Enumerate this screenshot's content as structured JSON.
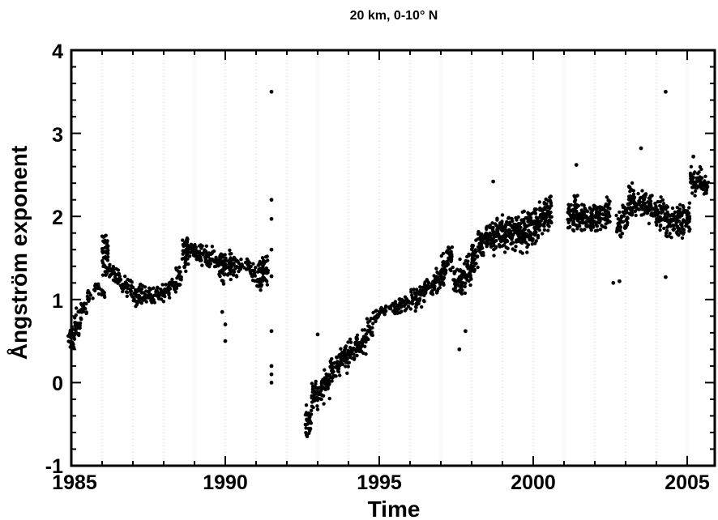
{
  "chart_data": {
    "type": "scatter",
    "title": "20 km, 0-10° N",
    "xlabel": "Time",
    "ylabel": "Ångström exponent",
    "xlim": [
      1985,
      2005.9
    ],
    "ylim": [
      -1,
      4
    ],
    "xticks": [
      "1985",
      "1990",
      "1995",
      "2000",
      "2005"
    ],
    "yticks": [
      "-1",
      "0",
      "1",
      "2",
      "3",
      "4"
    ],
    "grid": "vertical dotted lines at each year",
    "marker_color": "#000000",
    "grid_color": "#c8c8c8",
    "clusters_x_lo_hi": [
      [
        1985.0,
        0.35,
        0.7
      ],
      [
        1985.2,
        0.45,
        0.9
      ],
      [
        1985.4,
        0.75,
        1.0
      ],
      [
        1985.6,
        0.98,
        1.12
      ],
      [
        1985.8,
        1.03,
        1.2
      ],
      [
        1986.0,
        1.02,
        1.15
      ],
      [
        1986.1,
        1.25,
        1.85
      ],
      [
        1986.3,
        1.2,
        1.45
      ],
      [
        1986.5,
        1.15,
        1.4
      ],
      [
        1986.7,
        1.05,
        1.3
      ],
      [
        1986.9,
        1.0,
        1.25
      ],
      [
        1987.1,
        0.9,
        1.2
      ],
      [
        1987.3,
        0.9,
        1.2
      ],
      [
        1987.5,
        0.95,
        1.2
      ],
      [
        1987.7,
        0.95,
        1.18
      ],
      [
        1987.9,
        0.95,
        1.2
      ],
      [
        1988.1,
        1.0,
        1.25
      ],
      [
        1988.3,
        1.05,
        1.3
      ],
      [
        1988.5,
        1.1,
        1.4
      ],
      [
        1988.7,
        1.3,
        1.85
      ],
      [
        1988.9,
        1.45,
        1.75
      ],
      [
        1989.1,
        1.4,
        1.7
      ],
      [
        1989.3,
        1.4,
        1.68
      ],
      [
        1989.5,
        1.35,
        1.65
      ],
      [
        1989.7,
        1.35,
        1.6
      ],
      [
        1989.9,
        1.1,
        1.65
      ],
      [
        1990.1,
        1.2,
        1.6
      ],
      [
        1990.3,
        1.25,
        1.55
      ],
      [
        1990.5,
        1.3,
        1.5
      ],
      [
        1990.7,
        1.3,
        1.5
      ],
      [
        1990.9,
        1.2,
        1.45
      ],
      [
        1991.1,
        1.1,
        1.5
      ],
      [
        1991.3,
        1.15,
        1.55
      ],
      [
        1992.7,
        -0.7,
        -0.2
      ],
      [
        1992.9,
        -0.4,
        0.1
      ],
      [
        1993.1,
        -0.3,
        0.05
      ],
      [
        1993.3,
        -0.2,
        0.2
      ],
      [
        1993.5,
        0.0,
        0.35
      ],
      [
        1993.7,
        0.05,
        0.45
      ],
      [
        1993.9,
        0.1,
        0.5
      ],
      [
        1994.1,
        0.2,
        0.55
      ],
      [
        1994.3,
        0.3,
        0.62
      ],
      [
        1994.5,
        0.3,
        0.65
      ],
      [
        1994.7,
        0.5,
        0.8
      ],
      [
        1994.9,
        0.7,
        0.9
      ],
      [
        1995.1,
        0.8,
        0.95
      ],
      [
        1995.3,
        0.82,
        1.0
      ],
      [
        1995.5,
        0.8,
        1.0
      ],
      [
        1995.7,
        0.82,
        1.05
      ],
      [
        1995.9,
        0.85,
        1.1
      ],
      [
        1996.1,
        0.85,
        1.15
      ],
      [
        1996.3,
        0.9,
        1.2
      ],
      [
        1996.5,
        0.95,
        1.25
      ],
      [
        1996.7,
        1.0,
        1.3
      ],
      [
        1996.9,
        1.05,
        1.4
      ],
      [
        1997.1,
        1.1,
        1.6
      ],
      [
        1997.3,
        1.3,
        1.7
      ],
      [
        1997.5,
        1.0,
        1.4
      ],
      [
        1997.7,
        1.0,
        1.5
      ],
      [
        1997.9,
        1.1,
        1.6
      ],
      [
        1998.1,
        1.3,
        1.75
      ],
      [
        1998.3,
        1.4,
        1.85
      ],
      [
        1998.5,
        1.55,
        1.95
      ],
      [
        1998.7,
        1.5,
        2.0
      ],
      [
        1998.9,
        1.6,
        2.05
      ],
      [
        1999.1,
        1.55,
        2.0
      ],
      [
        1999.3,
        1.6,
        2.05
      ],
      [
        1999.5,
        1.55,
        2.05
      ],
      [
        1999.7,
        1.5,
        2.1
      ],
      [
        1999.9,
        1.6,
        2.1
      ],
      [
        2000.1,
        1.65,
        2.15
      ],
      [
        2000.3,
        1.7,
        2.2
      ],
      [
        2000.5,
        1.75,
        2.3
      ],
      [
        2001.2,
        1.8,
        2.2
      ],
      [
        2001.4,
        1.8,
        2.3
      ],
      [
        2001.6,
        1.8,
        2.2
      ],
      [
        2001.8,
        1.8,
        2.15
      ],
      [
        2002.0,
        1.75,
        2.2
      ],
      [
        2002.2,
        1.8,
        2.2
      ],
      [
        2002.4,
        1.8,
        2.25
      ],
      [
        2002.8,
        1.7,
        2.1
      ],
      [
        2003.0,
        1.8,
        2.2
      ],
      [
        2003.2,
        1.95,
        2.45
      ],
      [
        2003.4,
        2.0,
        2.3
      ],
      [
        2003.6,
        1.95,
        2.35
      ],
      [
        2003.8,
        1.9,
        2.3
      ],
      [
        2004.0,
        1.85,
        2.2
      ],
      [
        2004.2,
        1.8,
        2.25
      ],
      [
        2004.4,
        1.7,
        2.2
      ],
      [
        2004.6,
        1.75,
        2.15
      ],
      [
        2004.8,
        1.7,
        2.2
      ],
      [
        2005.0,
        1.8,
        2.2
      ],
      [
        2005.2,
        2.2,
        2.65
      ],
      [
        2005.4,
        2.25,
        2.6
      ],
      [
        2005.6,
        2.2,
        2.5
      ]
    ],
    "outliers": [
      [
        1991.5,
        3.5
      ],
      [
        1991.5,
        2.2
      ],
      [
        1991.5,
        1.97
      ],
      [
        1991.5,
        1.6
      ],
      [
        1991.5,
        1.28
      ],
      [
        1991.5,
        0.62
      ],
      [
        1991.5,
        0.2
      ],
      [
        1991.5,
        0.1
      ],
      [
        1991.5,
        0.0
      ],
      [
        1990.0,
        0.7
      ],
      [
        1990.0,
        0.5
      ],
      [
        1989.9,
        0.85
      ],
      [
        1993.0,
        0.58
      ],
      [
        1997.6,
        0.4
      ],
      [
        1997.8,
        0.62
      ],
      [
        1998.7,
        2.42
      ],
      [
        2001.4,
        2.62
      ],
      [
        2002.6,
        1.2
      ],
      [
        2002.8,
        1.22
      ],
      [
        2003.5,
        2.82
      ],
      [
        2004.3,
        3.5
      ],
      [
        2004.3,
        1.27
      ],
      [
        2005.2,
        2.72
      ]
    ]
  }
}
